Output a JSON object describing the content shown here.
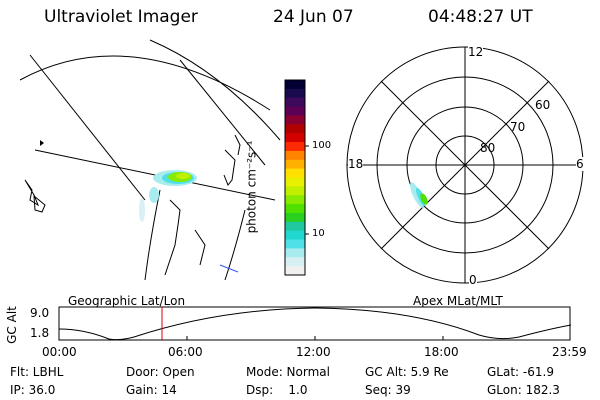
{
  "header": {
    "instrument": "Ultraviolet Imager",
    "date": "24 Jun 07",
    "time": "04:48:27 UT"
  },
  "colorbar": {
    "label": "photon cm⁻²s⁻¹",
    "ticks": [
      "100",
      "10"
    ],
    "colors": [
      "#000033",
      "#1a0b4f",
      "#3d0a5b",
      "#5b0055",
      "#8a0030",
      "#b00000",
      "#d40000",
      "#ff2a00",
      "#ff8200",
      "#ffb000",
      "#ffe000",
      "#e8f000",
      "#c0f000",
      "#88ea00",
      "#4fe000",
      "#2ad01e",
      "#20c8a0",
      "#20d8d0",
      "#50e0e8",
      "#a8ecf0",
      "#d8f0f4",
      "#f0f0f0"
    ]
  },
  "polar": {
    "mlt_labels": [
      "12",
      "18",
      "6",
      "0"
    ],
    "mlat_labels": [
      "60",
      "70",
      "80"
    ]
  },
  "footer": {
    "left_label": "Geographic Lat/Lon",
    "right_label": "Apex MLat/MLT",
    "gc_alt_label": "GC Alt",
    "gc_alt_ticks": [
      "9.0",
      "1.8"
    ],
    "time_ticks": [
      "00:00",
      "06:00",
      "12:00",
      "18:00",
      "23:59"
    ]
  },
  "info": {
    "row1": {
      "flt": "Flt: LBHL",
      "door": "Door: Open",
      "mode": "Mode: Normal",
      "gcalt": "GC Alt: 5.9 Re",
      "glat": "GLat: -61.9"
    },
    "row2": {
      "ip": "IP: 36.0",
      "gain": "Gain: 14",
      "dsp": "Dsp:    1.0",
      "seq": "Seq: 39",
      "glon": "GLon: 182.3"
    }
  },
  "accent_colors": {
    "current_time_marker": "#dd0000",
    "coastline_blue": "#3355ff"
  }
}
